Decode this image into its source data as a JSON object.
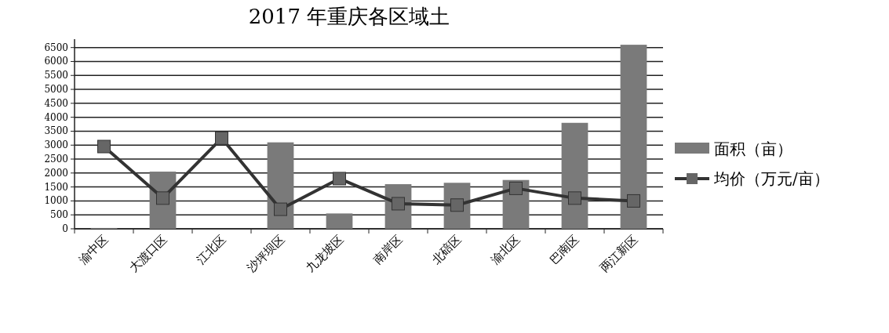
{
  "chart_data": {
    "type": "bar",
    "title": "2017 年重庆各区域土",
    "categories": [
      "渝中区",
      "大渡口区",
      "江北区",
      "沙坪坝区",
      "九龙坡区",
      "南岸区",
      "北碚区",
      "渝北区",
      "巴南区",
      "两江新区"
    ],
    "series": [
      {
        "name": "面积（亩）",
        "color": "#7a7a7a",
        "values": [
          30,
          2050,
          0,
          3100,
          550,
          1600,
          1650,
          1750,
          3800,
          6600
        ]
      },
      {
        "name": "均价（万元/亩）",
        "type": "line",
        "color": "#333333",
        "marker": "square",
        "values": [
          2950,
          1100,
          3250,
          700,
          1800,
          900,
          850,
          1450,
          1100,
          1000
        ]
      }
    ],
    "ylim": [
      0,
      6800
    ],
    "yticks": [
      0,
      500,
      1000,
      1500,
      2000,
      2500,
      3000,
      3500,
      4000,
      4500,
      5000,
      5500,
      6000,
      6500
    ],
    "grid": "y",
    "legend": "right"
  }
}
